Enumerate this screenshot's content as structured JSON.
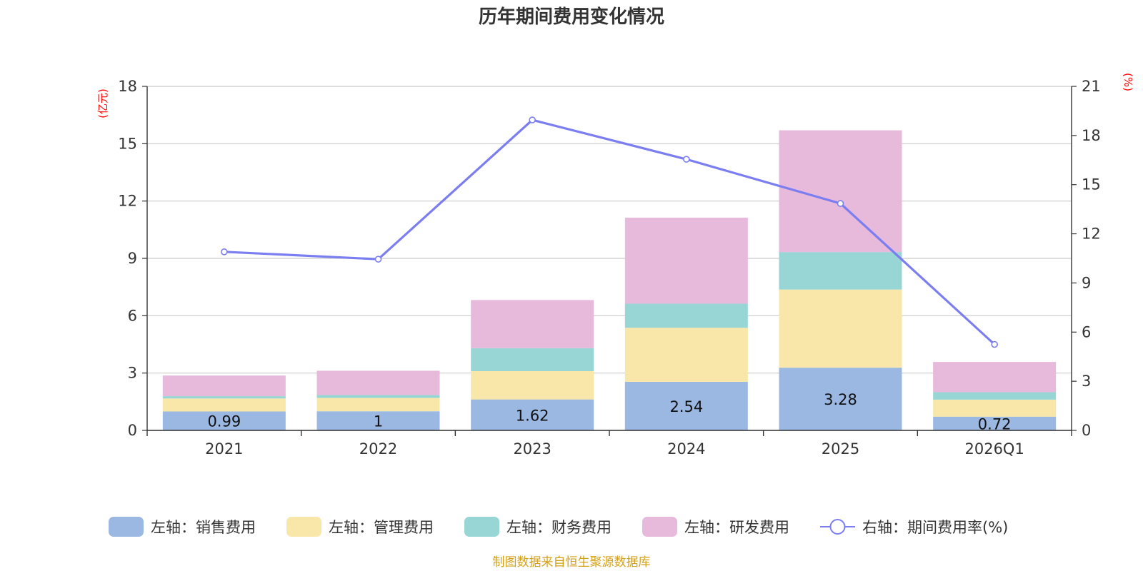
{
  "chart_data": {
    "type": "bar",
    "stacked": true,
    "title": "历年期间费用变化情况",
    "categories": [
      "2021",
      "2022",
      "2023",
      "2024",
      "2025",
      "2026Q1"
    ],
    "left_axis": {
      "unit": "(亿元)",
      "ticks": [
        "0",
        "3",
        "6",
        "9",
        "12",
        "15",
        "18"
      ],
      "ylim": [
        0,
        18
      ]
    },
    "right_axis": {
      "unit": "(%)",
      "ticks": [
        "0",
        "3",
        "6",
        "9",
        "12",
        "15",
        "18",
        "21"
      ],
      "ylim": [
        0,
        21
      ]
    },
    "series": [
      {
        "name": "左轴：销售费用",
        "axis": "left",
        "type": "bar",
        "color": "#9bb8e3",
        "values": [
          0.99,
          1,
          1.62,
          2.54,
          3.28,
          0.72
        ],
        "labels": [
          "0.99",
          "1",
          "1.62",
          "2.54",
          "3.28",
          "0.72"
        ]
      },
      {
        "name": "左轴：管理费用",
        "axis": "left",
        "type": "bar",
        "color": "#f8e7a9",
        "values": [
          0.68,
          0.7,
          1.48,
          2.83,
          4.09,
          0.89
        ]
      },
      {
        "name": "左轴：财务费用",
        "axis": "left",
        "type": "bar",
        "color": "#98d5d5",
        "values": [
          0.12,
          0.15,
          1.2,
          1.26,
          1.96,
          0.39
        ]
      },
      {
        "name": "左轴：研发费用",
        "axis": "left",
        "type": "bar",
        "color": "#e7b9da",
        "values": [
          1.08,
          1.27,
          2.52,
          4.5,
          6.37,
          1.58
        ]
      },
      {
        "name": "右轴：期间费用率(%)",
        "axis": "right",
        "type": "line",
        "color": "#7b7ef0",
        "values": [
          10.9,
          10.45,
          18.95,
          16.55,
          13.85,
          5.25
        ]
      }
    ],
    "source": "制图数据来自恒生聚源数据库",
    "source_color": "#d4a017",
    "axis_unit_color": "#ff0000"
  }
}
